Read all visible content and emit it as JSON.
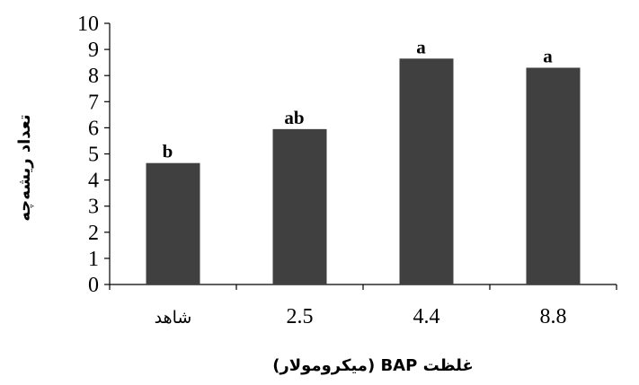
{
  "chart_data": {
    "type": "bar",
    "categories": [
      "شاهد",
      "2.5",
      "4.4",
      "8.8"
    ],
    "values": [
      4.65,
      5.95,
      8.65,
      8.3
    ],
    "significance_letters": [
      "b",
      "ab",
      "a",
      "a"
    ],
    "title": "",
    "xlabel": "غلظت BAP (میکرومولار)",
    "ylabel": "تعداد ریشه‌چه",
    "ylim": [
      0,
      10
    ],
    "yticks": [
      0,
      1,
      2,
      3,
      4,
      5,
      6,
      7,
      8,
      9,
      10
    ],
    "grid": false,
    "bar_color": "#404040"
  }
}
